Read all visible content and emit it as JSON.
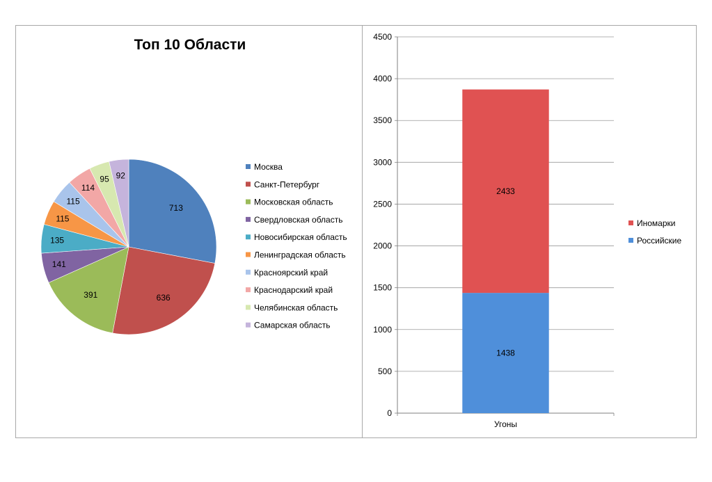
{
  "chart_data": [
    {
      "type": "pie",
      "title": "Топ 10 Области",
      "categories": [
        "Москва",
        "Санкт-Петербург",
        "Московская область",
        "Свердловская область",
        "Новосибирская область",
        "Ленинградская область",
        "Красноярский край",
        "Краснодарский край",
        "Челябинская область",
        "Самарская область"
      ],
      "values": [
        713,
        636,
        391,
        141,
        135,
        115,
        115,
        114,
        95,
        92
      ],
      "colors": [
        "#4f81bd",
        "#c0504d",
        "#9bbb59",
        "#8064a2",
        "#4bacc6",
        "#f79646",
        "#a9c4eb",
        "#f2a7a6",
        "#d7e8b0",
        "#c5b4dc"
      ],
      "legend_position": "right"
    },
    {
      "type": "bar",
      "stacked": true,
      "categories": [
        "Угоны"
      ],
      "series": [
        {
          "name": "Российские",
          "values": [
            1438
          ],
          "color": "#4f8fda"
        },
        {
          "name": "Иномарки",
          "values": [
            2433
          ],
          "color": "#e05252"
        }
      ],
      "ylim": [
        0,
        4500
      ],
      "yticks": [
        0,
        500,
        1000,
        1500,
        2000,
        2500,
        3000,
        3500,
        4000,
        4500
      ],
      "legend_order": [
        "Иномарки",
        "Российские"
      ],
      "legend_position": "right",
      "grid": true
    }
  ]
}
